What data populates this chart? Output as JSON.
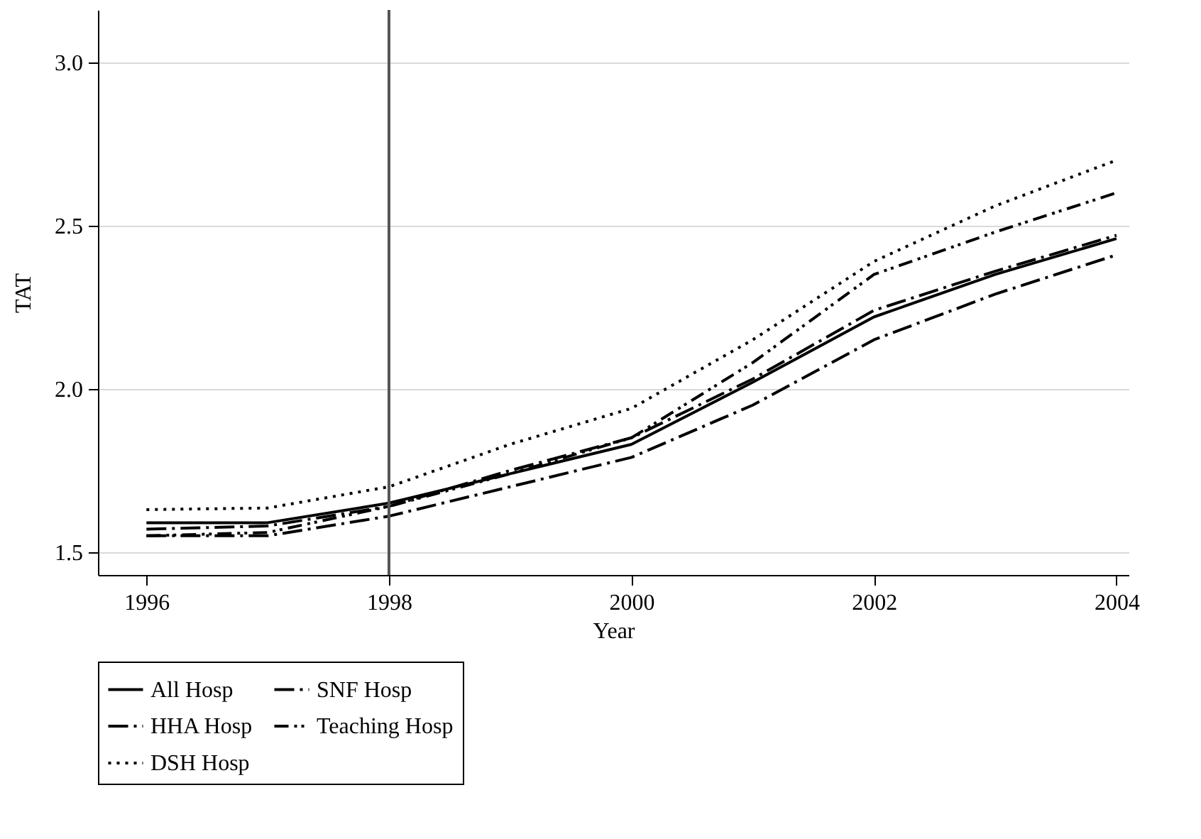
{
  "chart_data": {
    "type": "line",
    "xlabel": "Year",
    "ylabel": "TAT",
    "x": [
      1996,
      1997,
      1998,
      1999,
      2000,
      2001,
      2002,
      2003,
      2004
    ],
    "series": [
      {
        "name": "All Hosp",
        "color": "#000000",
        "line_style": "solid",
        "values": [
          1.59,
          1.59,
          1.65,
          1.74,
          1.83,
          2.02,
          2.22,
          2.35,
          2.46
        ]
      },
      {
        "name": "SNF Hosp",
        "color": "#000000",
        "line_style": "dashdot",
        "values": [
          1.57,
          1.58,
          1.64,
          1.75,
          1.85,
          2.03,
          2.24,
          2.36,
          2.47
        ]
      },
      {
        "name": "HHA Hosp",
        "color": "#000000",
        "line_style": "dashdot",
        "values": [
          1.55,
          1.55,
          1.61,
          1.7,
          1.79,
          1.95,
          2.15,
          2.29,
          2.41
        ]
      },
      {
        "name": "Teaching Hosp",
        "color": "#000000",
        "line_style": "dashdotdot",
        "values": [
          1.55,
          1.56,
          1.64,
          1.74,
          1.85,
          2.08,
          2.35,
          2.48,
          2.6
        ]
      },
      {
        "name": "DSH Hosp",
        "color": "#000000",
        "line_style": "dotted",
        "values": [
          1.63,
          1.635,
          1.7,
          1.83,
          1.94,
          2.15,
          2.39,
          2.56,
          2.7
        ]
      }
    ],
    "xlim": [
      1995.6,
      2004.1
    ],
    "xticks": [
      1996,
      1998,
      2000,
      2002,
      2004
    ],
    "ylim": [
      1.43,
      3.16
    ],
    "yticks": [
      1.5,
      {
        "value": 2,
        "label": "2.0"
      },
      2.5,
      {
        "value": 3,
        "label": "3.0"
      }
    ],
    "ref_lines": [
      {
        "axis": "x",
        "value": 1998,
        "color": "#555555"
      }
    ],
    "grid": "y",
    "legend": "bottom",
    "marker": "none"
  }
}
